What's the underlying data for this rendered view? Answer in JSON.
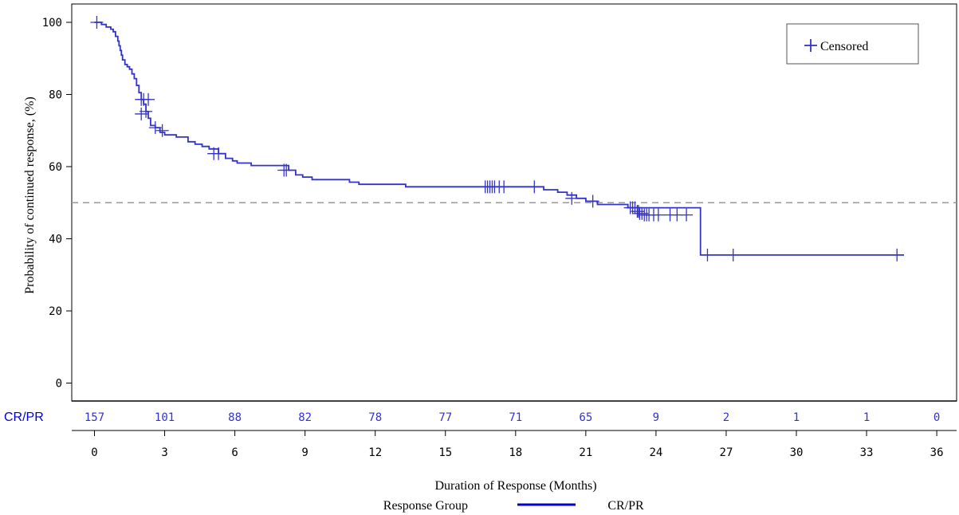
{
  "chart_data": {
    "type": "line",
    "title": "",
    "xlabel": "Duration of Response (Months)",
    "ylabel": "Probability of continued response, (%)",
    "xlim": [
      -1,
      36.5
    ],
    "ylim": [
      -5,
      105
    ],
    "xticks": [
      0,
      3,
      6,
      9,
      12,
      15,
      18,
      21,
      24,
      27,
      30,
      33,
      36
    ],
    "yticks": [
      0,
      20,
      40,
      60,
      80,
      100
    ],
    "ytick_labels": [
      "0",
      "20",
      "40",
      "60",
      "80",
      "100"
    ],
    "grid": false,
    "reference_line": {
      "y": 50,
      "style": "dashed",
      "color": "#999999"
    },
    "legend": {
      "position": "top-right",
      "censored_label": "Censored",
      "group_title": "Response Group",
      "group_position": "bottom"
    },
    "series": [
      {
        "name": "CR/PR",
        "color": "#3333cc",
        "step_points": [
          [
            0,
            100
          ],
          [
            0.3,
            99.4
          ],
          [
            0.5,
            98.7
          ],
          [
            0.7,
            98.1
          ],
          [
            0.8,
            97.4
          ],
          [
            0.9,
            96.1
          ],
          [
            1.0,
            94.8
          ],
          [
            1.05,
            93.5
          ],
          [
            1.1,
            92.2
          ],
          [
            1.15,
            90.9
          ],
          [
            1.2,
            89.6
          ],
          [
            1.3,
            88.3
          ],
          [
            1.4,
            87.7
          ],
          [
            1.5,
            87.0
          ],
          [
            1.6,
            85.7
          ],
          [
            1.7,
            84.4
          ],
          [
            1.8,
            82.5
          ],
          [
            1.9,
            80.5
          ],
          [
            2.0,
            78.6
          ],
          [
            2.1,
            77.3
          ],
          [
            2.2,
            75.3
          ],
          [
            2.3,
            73.4
          ],
          [
            2.4,
            71.4
          ],
          [
            2.6,
            70.8
          ],
          [
            2.8,
            69.5
          ],
          [
            3.0,
            68.8
          ],
          [
            3.5,
            68.2
          ],
          [
            4.0,
            66.9
          ],
          [
            4.3,
            66.2
          ],
          [
            4.6,
            65.6
          ],
          [
            4.9,
            64.9
          ],
          [
            5.3,
            63.6
          ],
          [
            5.6,
            62.3
          ],
          [
            5.9,
            61.6
          ],
          [
            6.1,
            61.0
          ],
          [
            6.7,
            60.3
          ],
          [
            8.3,
            59.0
          ],
          [
            8.6,
            57.7
          ],
          [
            8.9,
            57.1
          ],
          [
            9.3,
            56.4
          ],
          [
            10.9,
            55.7
          ],
          [
            11.3,
            55.1
          ],
          [
            13.3,
            54.4
          ],
          [
            19.2,
            53.6
          ],
          [
            19.8,
            52.9
          ],
          [
            20.2,
            52.1
          ],
          [
            20.6,
            51.2
          ],
          [
            21.0,
            50.4
          ],
          [
            21.5,
            49.5
          ],
          [
            22.8,
            48.6
          ],
          [
            25.9,
            35.5
          ],
          [
            34.6,
            35.5
          ]
        ],
        "censored": [
          [
            0.1,
            100
          ],
          [
            2.0,
            78.6
          ],
          [
            2.1,
            78.6
          ],
          [
            2.3,
            78.6
          ],
          [
            2.0,
            74.6
          ],
          [
            2.2,
            75.3
          ],
          [
            2.6,
            70.8
          ],
          [
            2.9,
            70.0
          ],
          [
            5.1,
            63.6
          ],
          [
            5.3,
            63.6
          ],
          [
            8.1,
            59.0
          ],
          [
            8.2,
            59.0
          ],
          [
            16.7,
            54.4
          ],
          [
            16.8,
            54.4
          ],
          [
            16.9,
            54.4
          ],
          [
            17.0,
            54.4
          ],
          [
            17.1,
            54.4
          ],
          [
            17.3,
            54.4
          ],
          [
            17.5,
            54.4
          ],
          [
            18.8,
            54.4
          ],
          [
            20.4,
            51.2
          ],
          [
            21.3,
            50.4
          ],
          [
            22.9,
            48.6
          ],
          [
            23.0,
            48.6
          ],
          [
            23.1,
            48.6
          ],
          [
            23.2,
            47.6
          ],
          [
            23.25,
            47.6
          ],
          [
            23.3,
            47.0
          ],
          [
            23.4,
            47.0
          ],
          [
            23.5,
            46.6
          ],
          [
            23.6,
            46.6
          ],
          [
            23.7,
            46.6
          ],
          [
            23.9,
            46.6
          ],
          [
            24.1,
            46.6
          ],
          [
            24.6,
            46.6
          ],
          [
            24.9,
            46.6
          ],
          [
            25.3,
            46.6
          ],
          [
            26.2,
            35.5
          ],
          [
            27.3,
            35.5
          ],
          [
            34.3,
            35.5
          ]
        ]
      }
    ],
    "at_risk": {
      "label": "CR/PR",
      "times": [
        0,
        3,
        6,
        9,
        12,
        15,
        18,
        21,
        24,
        27,
        30,
        33,
        36
      ],
      "values": [
        "157",
        "101",
        "88",
        "82",
        "78",
        "77",
        "71",
        "65",
        "9",
        "2",
        "1",
        "1",
        "0"
      ]
    }
  }
}
